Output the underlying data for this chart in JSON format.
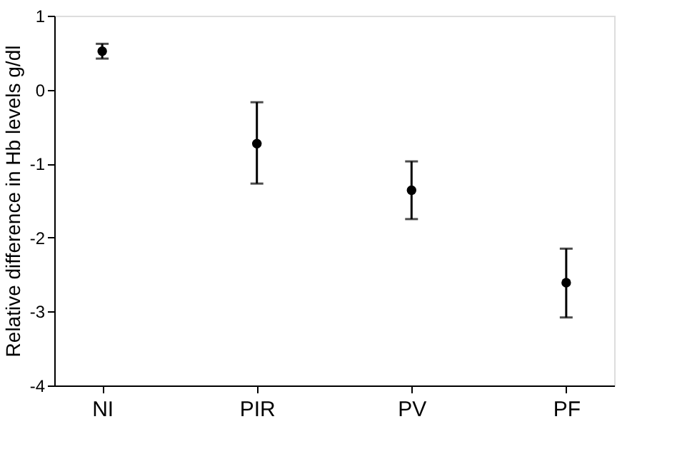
{
  "chart_data": {
    "type": "scatter",
    "ylabel": "Relative difference in Hb levels g/dl",
    "categories": [
      "NI",
      "PIR",
      "PV",
      "PF"
    ],
    "values": [
      0.52,
      -0.73,
      -1.36,
      -2.61
    ],
    "errors": [
      [
        0.42,
        0.62
      ],
      [
        -1.27,
        -0.17
      ],
      [
        -1.75,
        -0.97
      ],
      [
        -3.08,
        -2.15
      ]
    ],
    "color": "#000000",
    "marker": "circle",
    "ylim": [
      -4,
      1
    ],
    "yticks": [
      -4,
      -3,
      -2,
      -1,
      0,
      1
    ],
    "grid": false
  }
}
